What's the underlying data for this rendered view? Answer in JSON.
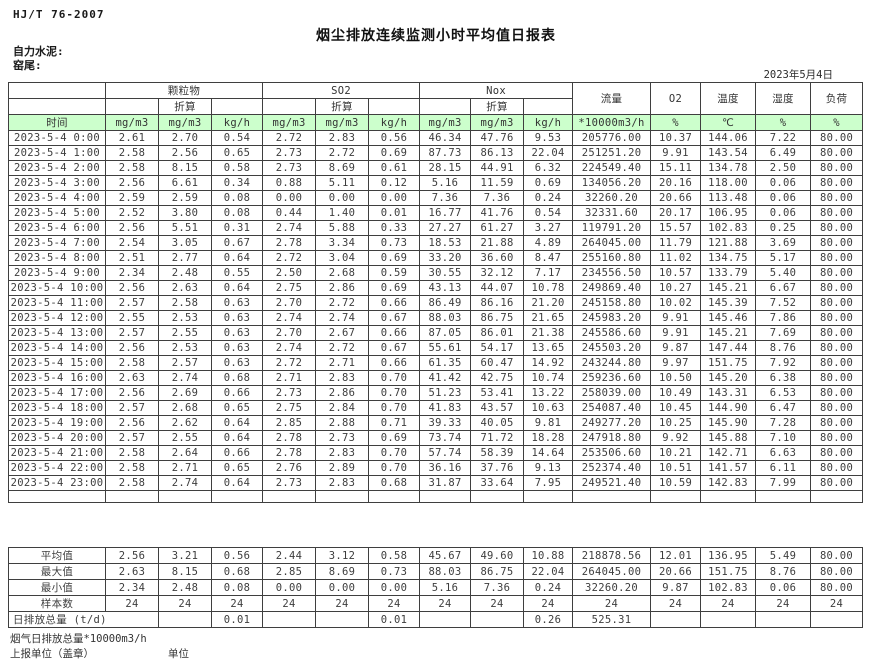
{
  "meta": {
    "standard": "HJ/T  76-2007",
    "title": "烟尘排放连续监测小时平均值日报表",
    "company": "自力水泥:",
    "site": "窑尾:",
    "date": "2023年5月4日"
  },
  "table": {
    "groups": {
      "pm": "颗粒物",
      "so2": "SO2",
      "nox": "Nox",
      "flow": "流量",
      "o2": "O2",
      "temp": "温度",
      "humidity": "湿度",
      "load": "负荷"
    },
    "converted_label": "折算",
    "time_label": "时间",
    "units": [
      "时间",
      "mg/m3",
      "mg/m3",
      "kg/h",
      "mg/m3",
      "mg/m3",
      "kg/h",
      "mg/m3",
      "mg/m3",
      "kg/h",
      "*10000m3/h",
      "%",
      "℃",
      "%",
      "%"
    ],
    "rows": [
      [
        "2023-5-4 0:00",
        "2.61",
        "2.70",
        "0.54",
        "2.72",
        "2.83",
        "0.56",
        "46.34",
        "47.76",
        "9.53",
        "205776.00",
        "10.37",
        "144.06",
        "7.22",
        "80.00"
      ],
      [
        "2023-5-4 1:00",
        "2.58",
        "2.56",
        "0.65",
        "2.73",
        "2.72",
        "0.69",
        "87.73",
        "86.13",
        "22.04",
        "251251.20",
        "9.91",
        "143.54",
        "6.49",
        "80.00"
      ],
      [
        "2023-5-4 2:00",
        "2.58",
        "8.15",
        "0.58",
        "2.73",
        "8.69",
        "0.61",
        "28.15",
        "44.91",
        "6.32",
        "224549.40",
        "15.11",
        "134.78",
        "2.50",
        "80.00"
      ],
      [
        "2023-5-4 3:00",
        "2.56",
        "6.61",
        "0.34",
        "0.88",
        "5.11",
        "0.12",
        "5.16",
        "11.59",
        "0.69",
        "134056.20",
        "20.16",
        "118.00",
        "0.06",
        "80.00"
      ],
      [
        "2023-5-4 4:00",
        "2.59",
        "2.59",
        "0.08",
        "0.00",
        "0.00",
        "0.00",
        "7.36",
        "7.36",
        "0.24",
        "32260.20",
        "20.66",
        "113.48",
        "0.06",
        "80.00"
      ],
      [
        "2023-5-4 5:00",
        "2.52",
        "3.80",
        "0.08",
        "0.44",
        "1.40",
        "0.01",
        "16.77",
        "41.76",
        "0.54",
        "32331.60",
        "20.17",
        "106.95",
        "0.06",
        "80.00"
      ],
      [
        "2023-5-4 6:00",
        "2.56",
        "5.51",
        "0.31",
        "2.74",
        "5.88",
        "0.33",
        "27.27",
        "61.27",
        "3.27",
        "119791.20",
        "15.57",
        "102.83",
        "0.25",
        "80.00"
      ],
      [
        "2023-5-4 7:00",
        "2.54",
        "3.05",
        "0.67",
        "2.78",
        "3.34",
        "0.73",
        "18.53",
        "21.88",
        "4.89",
        "264045.00",
        "11.79",
        "121.88",
        "3.69",
        "80.00"
      ],
      [
        "2023-5-4 8:00",
        "2.51",
        "2.77",
        "0.64",
        "2.72",
        "3.04",
        "0.69",
        "33.20",
        "36.60",
        "8.47",
        "255160.80",
        "11.02",
        "134.75",
        "5.17",
        "80.00"
      ],
      [
        "2023-5-4 9:00",
        "2.34",
        "2.48",
        "0.55",
        "2.50",
        "2.68",
        "0.59",
        "30.55",
        "32.12",
        "7.17",
        "234556.50",
        "10.57",
        "133.79",
        "5.40",
        "80.00"
      ],
      [
        "2023-5-4 10:00",
        "2.56",
        "2.63",
        "0.64",
        "2.75",
        "2.86",
        "0.69",
        "43.13",
        "44.07",
        "10.78",
        "249869.40",
        "10.27",
        "145.21",
        "6.67",
        "80.00"
      ],
      [
        "2023-5-4 11:00",
        "2.57",
        "2.58",
        "0.63",
        "2.70",
        "2.72",
        "0.66",
        "86.49",
        "86.16",
        "21.20",
        "245158.80",
        "10.02",
        "145.39",
        "7.52",
        "80.00"
      ],
      [
        "2023-5-4 12:00",
        "2.55",
        "2.53",
        "0.63",
        "2.74",
        "2.74",
        "0.67",
        "88.03",
        "86.75",
        "21.65",
        "245983.20",
        "9.91",
        "145.46",
        "7.86",
        "80.00"
      ],
      [
        "2023-5-4 13:00",
        "2.57",
        "2.55",
        "0.63",
        "2.70",
        "2.67",
        "0.66",
        "87.05",
        "86.01",
        "21.38",
        "245586.60",
        "9.91",
        "145.21",
        "7.69",
        "80.00"
      ],
      [
        "2023-5-4 14:00",
        "2.56",
        "2.53",
        "0.63",
        "2.74",
        "2.72",
        "0.67",
        "55.61",
        "54.17",
        "13.65",
        "245503.20",
        "9.87",
        "147.44",
        "8.76",
        "80.00"
      ],
      [
        "2023-5-4 15:00",
        "2.58",
        "2.57",
        "0.63",
        "2.72",
        "2.71",
        "0.66",
        "61.35",
        "60.47",
        "14.92",
        "243244.80",
        "9.97",
        "151.75",
        "7.92",
        "80.00"
      ],
      [
        "2023-5-4 16:00",
        "2.63",
        "2.74",
        "0.68",
        "2.71",
        "2.83",
        "0.70",
        "41.42",
        "42.75",
        "10.74",
        "259236.60",
        "10.50",
        "145.20",
        "6.38",
        "80.00"
      ],
      [
        "2023-5-4 17:00",
        "2.56",
        "2.69",
        "0.66",
        "2.73",
        "2.86",
        "0.70",
        "51.23",
        "53.41",
        "13.22",
        "258039.00",
        "10.49",
        "143.31",
        "6.53",
        "80.00"
      ],
      [
        "2023-5-4 18:00",
        "2.57",
        "2.68",
        "0.65",
        "2.75",
        "2.84",
        "0.70",
        "41.83",
        "43.57",
        "10.63",
        "254087.40",
        "10.45",
        "144.90",
        "6.47",
        "80.00"
      ],
      [
        "2023-5-4 19:00",
        "2.56",
        "2.62",
        "0.64",
        "2.85",
        "2.88",
        "0.71",
        "39.33",
        "40.05",
        "9.81",
        "249277.20",
        "10.25",
        "145.90",
        "7.28",
        "80.00"
      ],
      [
        "2023-5-4 20:00",
        "2.57",
        "2.55",
        "0.64",
        "2.78",
        "2.73",
        "0.69",
        "73.74",
        "71.72",
        "18.28",
        "247918.80",
        "9.92",
        "145.88",
        "7.10",
        "80.00"
      ],
      [
        "2023-5-4 21:00",
        "2.58",
        "2.64",
        "0.66",
        "2.78",
        "2.83",
        "0.70",
        "57.74",
        "58.39",
        "14.64",
        "253506.60",
        "10.21",
        "142.71",
        "6.63",
        "80.00"
      ],
      [
        "2023-5-4 22:00",
        "2.58",
        "2.71",
        "0.65",
        "2.76",
        "2.89",
        "0.70",
        "36.16",
        "37.76",
        "9.13",
        "252374.40",
        "10.51",
        "141.57",
        "6.11",
        "80.00"
      ],
      [
        "2023-5-4 23:00",
        "2.58",
        "2.74",
        "0.64",
        "2.73",
        "2.83",
        "0.68",
        "31.87",
        "33.64",
        "7.95",
        "249521.40",
        "10.59",
        "142.83",
        "7.99",
        "80.00"
      ]
    ],
    "summary": [
      {
        "label": "平均值",
        "values": [
          "2.56",
          "3.21",
          "0.56",
          "2.44",
          "3.12",
          "0.58",
          "45.67",
          "49.60",
          "10.88",
          "218878.56",
          "12.01",
          "136.95",
          "5.49",
          "80.00"
        ]
      },
      {
        "label": "最大值",
        "values": [
          "2.63",
          "8.15",
          "0.68",
          "2.85",
          "8.69",
          "0.73",
          "88.03",
          "86.75",
          "22.04",
          "264045.00",
          "20.66",
          "151.75",
          "8.76",
          "80.00"
        ]
      },
      {
        "label": "最小值",
        "values": [
          "2.34",
          "2.48",
          "0.08",
          "0.00",
          "0.00",
          "0.00",
          "5.16",
          "7.36",
          "0.24",
          "32260.20",
          "9.87",
          "102.83",
          "0.06",
          "80.00"
        ]
      },
      {
        "label": "样本数",
        "values": [
          "24",
          "24",
          "24",
          "24",
          "24",
          "24",
          "24",
          "24",
          "24",
          "24",
          "24",
          "24",
          "24",
          "24"
        ]
      }
    ],
    "daily_total": {
      "label": "日排放总量 (t/d)",
      "values": [
        "",
        "0.01",
        "",
        "",
        "0.01",
        "",
        "",
        "0.26",
        "525.31",
        "",
        "",
        "",
        ""
      ]
    }
  },
  "footer": {
    "note": "烟气日排放总量*10000m3/h",
    "report_unit": "上报单位（盖章）",
    "unit": "单位"
  }
}
